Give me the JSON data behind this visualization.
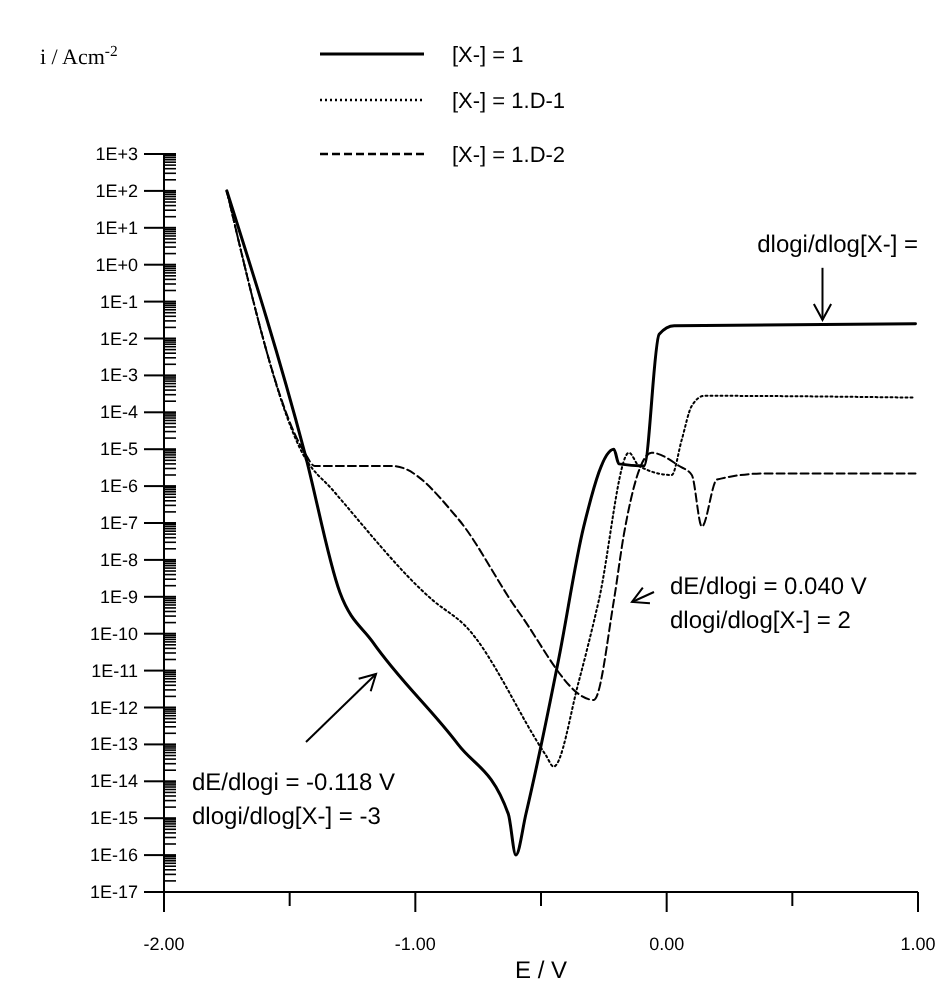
{
  "chart_data": {
    "type": "line",
    "xlabel": "E / V",
    "ylabel": "i / Acm$^{-2}$",
    "log": "y",
    "legend": "top",
    "xlim": [
      -2,
      1
    ],
    "xticks": [
      {
        "value": -2,
        "label": "-2.00"
      },
      {
        "value": -1.5,
        "label": null
      },
      {
        "value": -1,
        "label": "-1.00"
      },
      {
        "value": -0.5,
        "label": null
      },
      {
        "value": 0,
        "label": "0.00"
      },
      {
        "value": 0.5,
        "label": null
      },
      {
        "value": 1,
        "label": "1.00"
      }
    ],
    "ylim": [
      1e-17,
      1000
    ],
    "yticks": [
      {
        "value": 1000,
        "label": "1E+3"
      },
      {
        "value": 100,
        "label": "1E+2"
      },
      {
        "value": 10,
        "label": "1E+1"
      },
      {
        "value": 1,
        "label": "1E+0"
      },
      {
        "value": 0.1,
        "label": "1E-1"
      },
      {
        "value": 0.01,
        "label": "1E-2"
      },
      {
        "value": 0.001,
        "label": "1E-3"
      },
      {
        "value": 0.0001,
        "label": "1E-4"
      },
      {
        "value": 1e-05,
        "label": "1E-5"
      },
      {
        "value": 1e-06,
        "label": "1E-6"
      },
      {
        "value": 1e-07,
        "label": "1E-7"
      },
      {
        "value": 1e-08,
        "label": "1E-8"
      },
      {
        "value": 1e-09,
        "label": "1E-9"
      },
      {
        "value": 1e-10,
        "label": "1E-10"
      },
      {
        "value": 1e-11,
        "label": "1E-11"
      },
      {
        "value": 1e-12,
        "label": "1E-12"
      },
      {
        "value": 1e-13,
        "label": "1E-13"
      },
      {
        "value": 1e-14,
        "label": "1E-14"
      },
      {
        "value": 1e-15,
        "label": "1E-15"
      },
      {
        "value": 1e-16,
        "label": "1E-16"
      },
      {
        "value": 1e-17,
        "label": "1E-17"
      }
    ],
    "series": [
      {
        "name": "[X-] = 1",
        "color": "#000000",
        "line_style": "solid",
        "x": [
          -1.75,
          -1.44,
          -1.3,
          -1.17,
          -0.83,
          -0.63,
          -0.6,
          -0.56,
          -0.43,
          -0.33,
          -0.21,
          -0.19,
          -0.09,
          -0.03,
          0.03,
          0.99
        ],
        "values": [
          100,
          8e-06,
          1.3e-09,
          6e-11,
          1e-13,
          1.3e-15,
          1e-16,
          1.3e-15,
          2e-11,
          8e-08,
          1e-05,
          4e-06,
          3.5e-06,
          0.013,
          0.022,
          0.025
        ]
      },
      {
        "name": "[X-] = 1.D-1",
        "color": "#000000",
        "line_style": "dotted",
        "x": [
          -1.75,
          -1.44,
          -1.33,
          -0.93,
          -0.8,
          -0.48,
          -0.45,
          -0.35,
          -0.27,
          -0.15,
          -0.11,
          0.02,
          0.06,
          0.1,
          0.15,
          0.99
        ],
        "values": [
          100,
          6e-06,
          8e-07,
          8e-10,
          1.6e-10,
          5e-14,
          2.5e-14,
          5e-12,
          8e-10,
          8e-06,
          3.5e-06,
          2e-06,
          1.8e-05,
          0.00015,
          0.00028,
          0.00025
        ]
      },
      {
        "name": "[X-] = 1.D-2",
        "color": "#000000",
        "line_style": "dashed",
        "x": [
          -1.75,
          -1.44,
          -1.4,
          -1.09,
          -0.83,
          -0.59,
          -0.29,
          -0.21,
          -0.17,
          -0.06,
          0.05,
          0.1,
          0.14,
          0.2,
          0.39,
          0.99
        ],
        "values": [
          100,
          8e-06,
          3.5e-06,
          3.5e-06,
          1.3e-07,
          4e-10,
          1.6e-12,
          8e-10,
          5e-08,
          8e-06,
          3.5e-06,
          2e-06,
          8e-08,
          1.5e-06,
          2.2e-06,
          2.2e-06
        ]
      }
    ],
    "annotations": [
      {
        "text": "dlogi/dlog[X-] =",
        "x": 0.62,
        "y": 0.025
      },
      "dE/dlogi = 0.040 V\ndlogi/dlog[X-] = 2",
      "dE/dlogi = -0.118 V\ndlogi/dlog[X-] = -3"
    ]
  }
}
